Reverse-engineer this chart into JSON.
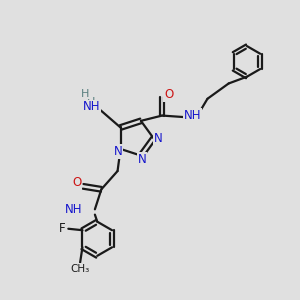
{
  "bg": "#e0e0e0",
  "bc": "#1a1a1a",
  "nc": "#1515cc",
  "oc": "#cc1515",
  "hc": "#5a8080",
  "figsize": [
    3.0,
    3.0
  ],
  "dpi": 100,
  "xlim": [
    0,
    10
  ],
  "ylim": [
    0,
    10
  ]
}
